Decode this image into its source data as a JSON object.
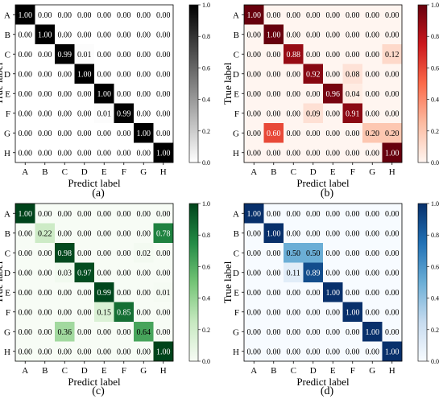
{
  "chart_data": [
    {
      "type": "heatmap",
      "panel_label": "(a)",
      "colormap": "greys",
      "cmap_colors": [
        "#ffffff",
        "#000000"
      ],
      "xlabel": "Predict label",
      "ylabel": "True label",
      "x_categories": [
        "A",
        "B",
        "C",
        "D",
        "E",
        "F",
        "G",
        "H"
      ],
      "y_categories": [
        "A",
        "B",
        "C",
        "D",
        "E",
        "F",
        "G",
        "H"
      ],
      "values": [
        [
          1.0,
          0.0,
          0.0,
          0.0,
          0.0,
          0.0,
          0.0,
          0.0
        ],
        [
          0.0,
          1.0,
          0.0,
          0.0,
          0.0,
          0.0,
          0.0,
          0.0
        ],
        [
          0.0,
          0.0,
          0.99,
          0.01,
          0.0,
          0.0,
          0.0,
          0.0
        ],
        [
          0.0,
          0.0,
          0.0,
          1.0,
          0.0,
          0.0,
          0.0,
          0.0
        ],
        [
          0.0,
          0.0,
          0.0,
          0.0,
          1.0,
          0.0,
          0.0,
          0.0
        ],
        [
          0.0,
          0.0,
          0.0,
          0.0,
          0.01,
          0.99,
          0.0,
          0.0
        ],
        [
          0.0,
          0.0,
          0.0,
          0.0,
          0.0,
          0.0,
          1.0,
          0.0
        ],
        [
          0.0,
          0.0,
          0.0,
          0.0,
          0.0,
          0.0,
          0.0,
          1.0
        ]
      ],
      "colorbar_ticks": [
        "0.0",
        "0.2",
        "0.4",
        "0.6",
        "0.8",
        "1.0"
      ],
      "vmin": 0,
      "vmax": 1
    },
    {
      "type": "heatmap",
      "panel_label": "(b)",
      "colormap": "reds",
      "cmap_colors": [
        "#fff5f0",
        "#fcbba1",
        "#fb6a4a",
        "#cb181d",
        "#67000d"
      ],
      "xlabel": "Predict label",
      "ylabel": "True label",
      "x_categories": [
        "A",
        "B",
        "C",
        "D",
        "E",
        "F",
        "G",
        "H"
      ],
      "y_categories": [
        "A",
        "B",
        "C",
        "D",
        "E",
        "F",
        "G",
        "H"
      ],
      "values": [
        [
          1.0,
          0.0,
          0.0,
          0.0,
          0.0,
          0.0,
          0.0,
          0.0
        ],
        [
          0.0,
          1.0,
          0.0,
          0.0,
          0.0,
          0.0,
          0.0,
          0.0
        ],
        [
          0.0,
          0.0,
          0.88,
          0.0,
          0.0,
          0.0,
          0.0,
          0.12
        ],
        [
          0.0,
          0.0,
          0.0,
          0.92,
          0.0,
          0.08,
          0.0,
          0.0
        ],
        [
          0.0,
          0.0,
          0.0,
          0.0,
          0.96,
          0.04,
          0.0,
          0.0
        ],
        [
          0.0,
          0.0,
          0.0,
          0.09,
          0.0,
          0.91,
          0.0,
          0.0
        ],
        [
          0.0,
          0.6,
          0.0,
          0.0,
          0.0,
          0.0,
          0.2,
          0.2
        ],
        [
          0.0,
          0.0,
          0.0,
          0.0,
          0.0,
          0.0,
          0.0,
          1.0
        ]
      ],
      "colorbar_ticks": [
        "0.0",
        "0.2",
        "0.4",
        "0.6",
        "0.8",
        "1.0"
      ],
      "vmin": 0,
      "vmax": 1
    },
    {
      "type": "heatmap",
      "panel_label": "(c)",
      "colormap": "greens",
      "cmap_colors": [
        "#f7fcf5",
        "#c7e9c0",
        "#74c476",
        "#238b45",
        "#00441b"
      ],
      "xlabel": "Predict label",
      "ylabel": "True label",
      "x_categories": [
        "A",
        "B",
        "C",
        "D",
        "E",
        "F",
        "G",
        "H"
      ],
      "y_categories": [
        "A",
        "B",
        "C",
        "D",
        "E",
        "F",
        "G",
        "H"
      ],
      "values": [
        [
          1.0,
          0.0,
          0.0,
          0.0,
          0.0,
          0.0,
          0.0,
          0.0
        ],
        [
          0.0,
          0.22,
          0.0,
          0.0,
          0.0,
          0.0,
          0.0,
          0.78
        ],
        [
          0.0,
          0.0,
          0.98,
          0.0,
          0.0,
          0.0,
          0.02,
          0.0
        ],
        [
          0.0,
          0.0,
          0.03,
          0.97,
          0.0,
          0.0,
          0.0,
          0.0
        ],
        [
          0.0,
          0.0,
          0.0,
          0.0,
          0.99,
          0.0,
          0.0,
          0.01
        ],
        [
          0.0,
          0.0,
          0.0,
          0.0,
          0.15,
          0.85,
          0.0,
          0.0
        ],
        [
          0.0,
          0.0,
          0.36,
          0.0,
          0.0,
          0.0,
          0.64,
          0.0
        ],
        [
          0.0,
          0.0,
          0.0,
          0.0,
          0.0,
          0.0,
          0.0,
          1.0
        ]
      ],
      "colorbar_ticks": [
        "0.0",
        "0.2",
        "0.4",
        "0.6",
        "0.8",
        "1.0"
      ],
      "vmin": 0,
      "vmax": 1
    },
    {
      "type": "heatmap",
      "panel_label": "(d)",
      "colormap": "blues",
      "cmap_colors": [
        "#f7fbff",
        "#c6dbef",
        "#6baed6",
        "#2171b5",
        "#08306b"
      ],
      "xlabel": "Predict label",
      "ylabel": "True label",
      "x_categories": [
        "A",
        "B",
        "C",
        "D",
        "E",
        "F",
        "G",
        "H"
      ],
      "y_categories": [
        "A",
        "B",
        "C",
        "D",
        "E",
        "F",
        "G",
        "H"
      ],
      "values": [
        [
          1.0,
          0.0,
          0.0,
          0.0,
          0.0,
          0.0,
          0.0,
          0.0
        ],
        [
          0.0,
          1.0,
          0.0,
          0.0,
          0.0,
          0.0,
          0.0,
          0.0
        ],
        [
          0.0,
          0.0,
          0.5,
          0.5,
          0.0,
          0.0,
          0.0,
          0.0
        ],
        [
          0.0,
          0.0,
          0.11,
          0.89,
          0.0,
          0.0,
          0.0,
          0.0
        ],
        [
          0.0,
          0.0,
          0.0,
          0.0,
          1.0,
          0.0,
          0.0,
          0.0
        ],
        [
          0.0,
          0.0,
          0.0,
          0.0,
          0.0,
          1.0,
          0.0,
          0.0
        ],
        [
          0.0,
          0.0,
          0.0,
          0.0,
          0.0,
          0.0,
          1.0,
          0.0
        ],
        [
          0.0,
          0.0,
          0.0,
          0.0,
          0.0,
          0.0,
          0.0,
          1.0
        ]
      ],
      "colorbar_ticks": [
        "0.0",
        "0.2",
        "0.4",
        "0.6",
        "0.8",
        "1.0"
      ],
      "vmin": 0,
      "vmax": 1
    }
  ]
}
